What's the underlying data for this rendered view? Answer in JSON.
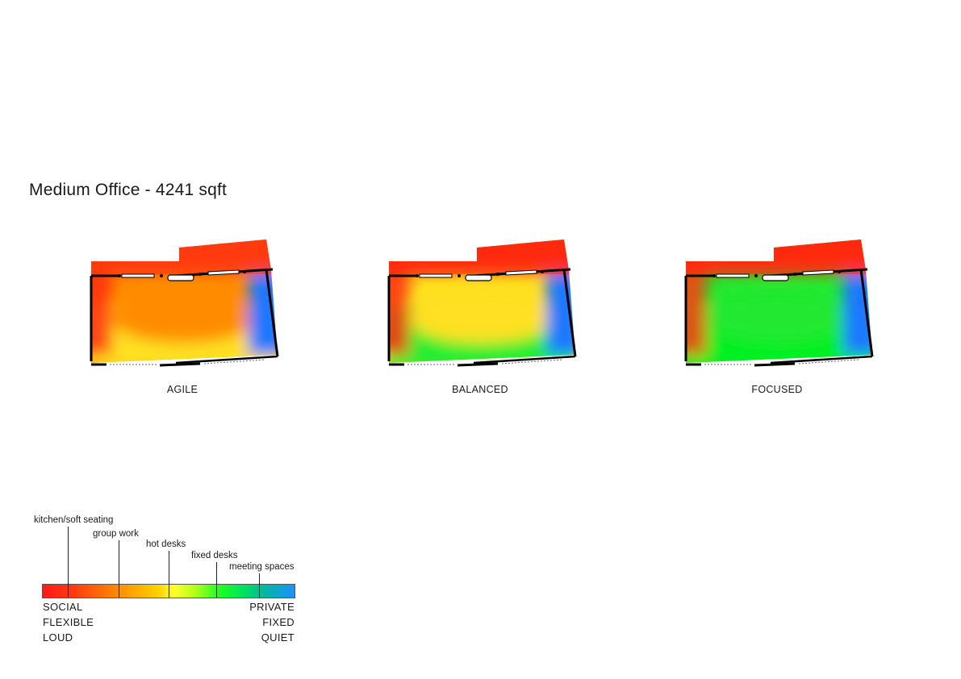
{
  "title": "Medium Office - 4241 sqft",
  "plans": [
    {
      "label": "AGILE",
      "heat": {
        "top": "#ff3a10",
        "upper_mid": "#ff8c00",
        "lower": "#ffe020",
        "right": "#1e78ff",
        "left": "#ff2a10"
      }
    },
    {
      "label": "BALANCED",
      "heat": {
        "top": "#ff2a10",
        "upper_mid": "#ffe020",
        "lower": "#20ee30",
        "right": "#1e78ff",
        "left": "#ff2a10"
      }
    },
    {
      "label": "FOCUSED",
      "heat": {
        "top": "#ff2a10",
        "upper_mid": "#20e830",
        "lower": "#00f020",
        "right": "#1e78ff",
        "left": "#ff3a10"
      }
    }
  ],
  "legend": {
    "categories": [
      {
        "label": "kitchen/soft seating",
        "position": 0.1
      },
      {
        "label": "group work",
        "position": 0.3
      },
      {
        "label": "hot desks",
        "position": 0.5
      },
      {
        "label": "fixed desks",
        "position": 0.69
      },
      {
        "label": "meeting spaces",
        "position": 0.86
      }
    ],
    "left_terms": [
      "SOCIAL",
      "FLEXIBLE",
      "LOUD"
    ],
    "right_terms": [
      "PRIVATE",
      "FIXED",
      "QUIET"
    ]
  }
}
